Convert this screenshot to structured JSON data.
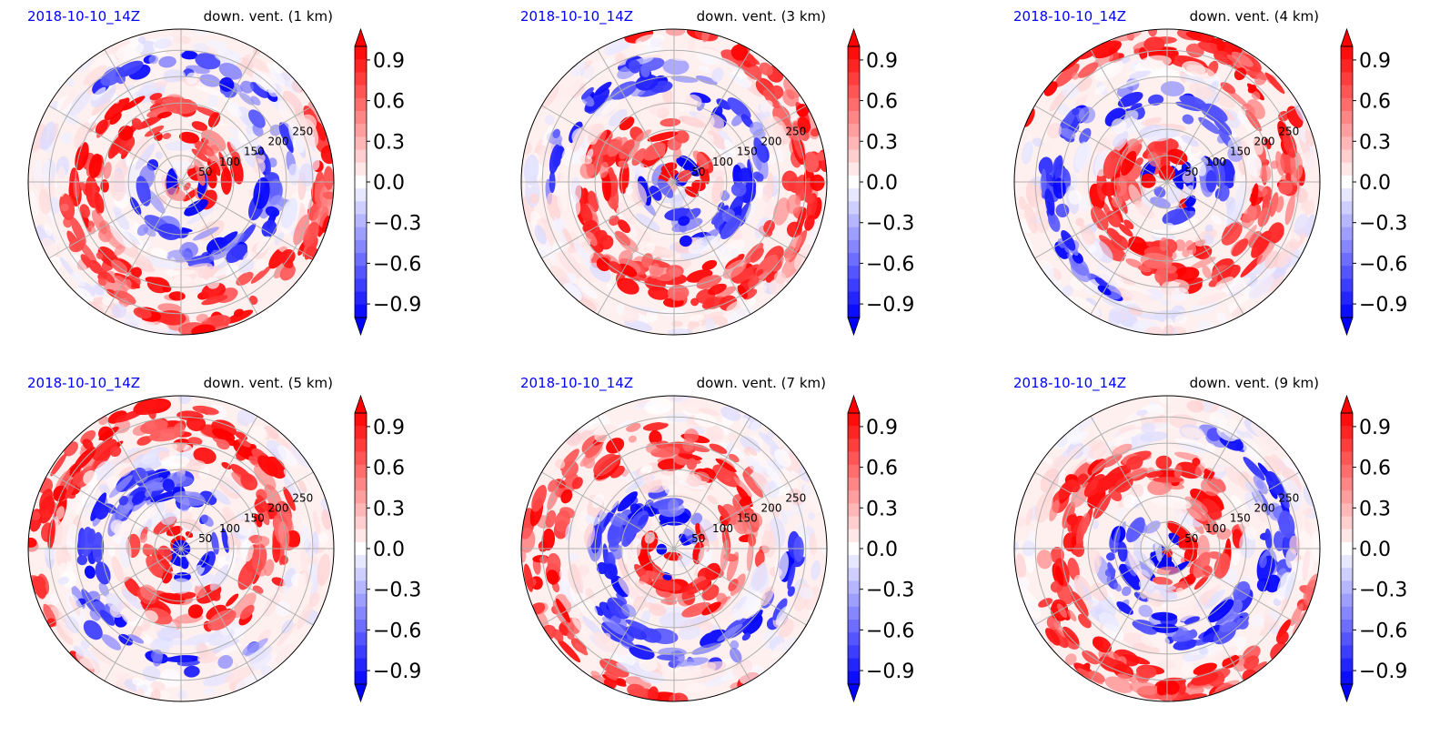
{
  "chart_data": [
    {
      "type": "heatmap",
      "date_label": "2018-10-10_14Z",
      "title": "down. vent. (1 km)",
      "radial_ticks": [
        "50",
        "100",
        "150",
        "200",
        "250"
      ],
      "colorbar": {
        "ticks": [
          "0.9",
          "0.6",
          "0.3",
          "0.0",
          "−0.3",
          "−0.6",
          "−0.9"
        ],
        "range": [
          -1,
          1
        ],
        "extend": "both",
        "cmap": "bwr"
      }
    },
    {
      "type": "heatmap",
      "date_label": "2018-10-10_14Z",
      "title": "down. vent. (3 km)",
      "radial_ticks": [
        "50",
        "100",
        "150",
        "200",
        "250"
      ],
      "colorbar": {
        "ticks": [
          "0.9",
          "0.6",
          "0.3",
          "0.0",
          "−0.3",
          "−0.6",
          "−0.9"
        ],
        "range": [
          -1,
          1
        ],
        "extend": "both",
        "cmap": "bwr"
      }
    },
    {
      "type": "heatmap",
      "date_label": "2018-10-10_14Z",
      "title": "down. vent. (4 km)",
      "radial_ticks": [
        "50",
        "100",
        "150",
        "200",
        "250"
      ],
      "colorbar": {
        "ticks": [
          "0.9",
          "0.6",
          "0.3",
          "0.0",
          "−0.3",
          "−0.6",
          "−0.9"
        ],
        "range": [
          -1,
          1
        ],
        "extend": "both",
        "cmap": "bwr"
      }
    },
    {
      "type": "heatmap",
      "date_label": "2018-10-10_14Z",
      "title": "down. vent. (5 km)",
      "radial_ticks": [
        "50",
        "100",
        "150",
        "200",
        "250"
      ],
      "colorbar": {
        "ticks": [
          "0.9",
          "0.6",
          "0.3",
          "0.0",
          "−0.3",
          "−0.6",
          "−0.9"
        ],
        "range": [
          -1,
          1
        ],
        "extend": "both",
        "cmap": "bwr"
      }
    },
    {
      "type": "heatmap",
      "date_label": "2018-10-10_14Z",
      "title": "down. vent. (7 km)",
      "radial_ticks": [
        "50",
        "100",
        "150",
        "200",
        "250"
      ],
      "colorbar": {
        "ticks": [
          "0.9",
          "0.6",
          "0.3",
          "0.0",
          "−0.3",
          "−0.6",
          "−0.9"
        ],
        "range": [
          -1,
          1
        ],
        "extend": "both",
        "cmap": "bwr"
      }
    },
    {
      "type": "heatmap",
      "date_label": "2018-10-10_14Z",
      "title": "down. vent. (9 km)",
      "radial_ticks": [
        "50",
        "100",
        "150",
        "200",
        "250"
      ],
      "colorbar": {
        "ticks": [
          "0.9",
          "0.6",
          "0.3",
          "0.0",
          "−0.3",
          "−0.6",
          "−0.9"
        ],
        "range": [
          -1,
          1
        ],
        "extend": "both",
        "cmap": "bwr"
      }
    }
  ],
  "colors": {
    "positive": "#ff0000",
    "negative": "#0000ff",
    "neutral": "#ffffff",
    "date_label": "#0000ff",
    "grid": "#b0b0b0"
  }
}
